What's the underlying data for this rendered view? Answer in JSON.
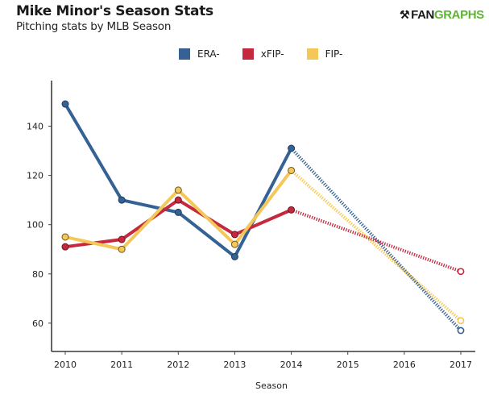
{
  "header": {
    "title": "Mike Minor's Season Stats",
    "subtitle": "Pitching stats by MLB Season",
    "logo_text_a": "FAN",
    "logo_text_b": "GRAPHS",
    "logo_icon": "batter-icon"
  },
  "chart_data": {
    "type": "line",
    "title": "Mike Minor's Season Stats",
    "subtitle": "Pitching stats by MLB Season",
    "xlabel": "Season",
    "ylabel": "",
    "x": [
      2010,
      2011,
      2012,
      2013,
      2014,
      2015,
      2016,
      2017
    ],
    "x_tick_labels": [
      "2010",
      "2011",
      "2012",
      "2013",
      "2014",
      "2015",
      "2016",
      "2017"
    ],
    "y_ticks": [
      60,
      80,
      100,
      120,
      140
    ],
    "y_tick_labels": [
      "60",
      "80",
      "100",
      "120",
      "140"
    ],
    "ylim": [
      48.5,
      158.5
    ],
    "xlim": [
      2009.75,
      2017.3
    ],
    "grid": false,
    "legend_position": "top-center",
    "dotted_segment_note": "Dotted line connects 2014 to 2017 (no data 2015-2016); 2017 points hollow",
    "series": [
      {
        "name": "ERA-",
        "color": "#356295",
        "points": [
          {
            "x": 2010,
            "y": 149
          },
          {
            "x": 2011,
            "y": 110
          },
          {
            "x": 2012,
            "y": 105
          },
          {
            "x": 2013,
            "y": 87
          },
          {
            "x": 2014,
            "y": 131
          },
          {
            "x": 2017,
            "y": 57
          }
        ]
      },
      {
        "name": "xFIP-",
        "color": "#c6283d",
        "points": [
          {
            "x": 2010,
            "y": 91
          },
          {
            "x": 2011,
            "y": 94
          },
          {
            "x": 2012,
            "y": 110
          },
          {
            "x": 2013,
            "y": 96
          },
          {
            "x": 2014,
            "y": 106
          },
          {
            "x": 2017,
            "y": 81
          }
        ]
      },
      {
        "name": "FIP-",
        "color": "#f4c758",
        "points": [
          {
            "x": 2010,
            "y": 95
          },
          {
            "x": 2011,
            "y": 90
          },
          {
            "x": 2012,
            "y": 114
          },
          {
            "x": 2013,
            "y": 92
          },
          {
            "x": 2014,
            "y": 122
          },
          {
            "x": 2017,
            "y": 61
          }
        ]
      }
    ]
  }
}
